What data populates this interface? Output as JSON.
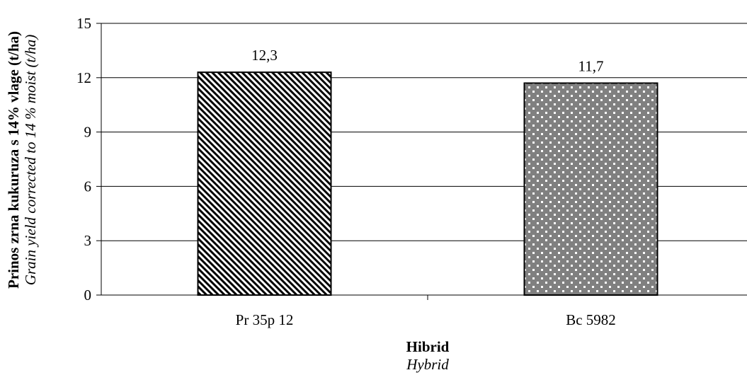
{
  "chart_data": {
    "type": "bar",
    "categories": [
      "Pr 35p 12",
      "Bc 5982"
    ],
    "values": [
      12.3,
      11.7
    ],
    "value_labels": [
      "12,3",
      "11,7"
    ],
    "ylim": [
      0,
      15
    ],
    "yticks": [
      0,
      3,
      6,
      9,
      12,
      15
    ],
    "grid": true,
    "legend": "none",
    "xlabel": "Hibrid",
    "xlabel_translation": "Hybrid",
    "ylabel": "Prinos zrna kukuruza s 14% vlage (t/ha)",
    "ylabel_translation": "Grain yield corrected to 14 % moist (t/ha)",
    "bar_patterns": [
      "diagonal-stripes",
      "white-dots-on-gray"
    ],
    "colors": {
      "bar_fill_1": "#ffffff",
      "bar_stripe_1": "#000000",
      "bar_fill_2": "#808080",
      "bar_dot_2": "#ffffff",
      "grid": "#000000"
    }
  }
}
